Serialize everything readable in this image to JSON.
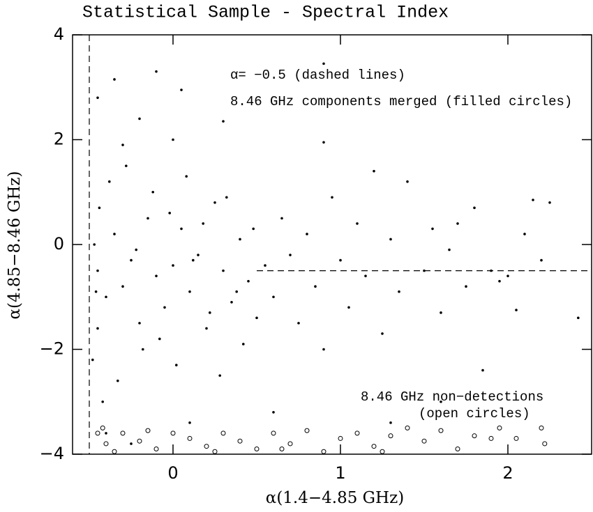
{
  "chart_data": {
    "type": "scatter",
    "title": "Statistical Sample - Spectral Index",
    "xlabel": "α(1.4−4.85 GHz)",
    "ylabel": "α(4.85−8.46 GHz)",
    "xlim": [
      -0.6,
      2.5
    ],
    "ylim": [
      -4,
      4
    ],
    "xticks": [
      0,
      1,
      2
    ],
    "yticks": [
      {
        "value": -4,
        "label": "−4"
      },
      {
        "value": -2,
        "label": "−2"
      },
      0,
      2,
      4
    ],
    "vline": {
      "x": -0.5
    },
    "hline": {
      "y": -0.5,
      "x_start": 0.5
    },
    "annotations": [
      "α= −0.5 (dashed lines)",
      "8.46 GHz components merged (filled circles)",
      "8.46 GHz non−detections",
      "(open circles)"
    ],
    "series": [
      {
        "marker": "filled",
        "color": "#000000",
        "x": [
          -0.45,
          -0.4,
          -0.35,
          -0.3,
          -0.25,
          -0.2,
          -0.15,
          -0.1,
          -0.05,
          0.0,
          0.05,
          0.1,
          0.15,
          0.2,
          0.25,
          0.3,
          0.35,
          0.4,
          0.45,
          0.5,
          -0.48,
          -0.42,
          -0.38,
          -0.33,
          -0.28,
          -0.22,
          -0.18,
          -0.12,
          -0.08,
          -0.02,
          0.02,
          0.08,
          0.12,
          0.18,
          0.22,
          0.28,
          0.32,
          0.38,
          0.42,
          0.48,
          0.55,
          0.6,
          0.65,
          0.7,
          0.75,
          0.8,
          0.85,
          0.9,
          0.95,
          1.0,
          1.05,
          1.1,
          1.15,
          1.2,
          1.25,
          1.3,
          1.35,
          1.4,
          1.5,
          1.55,
          1.6,
          1.65,
          1.7,
          1.75,
          1.8,
          1.85,
          1.9,
          1.95,
          2.0,
          2.1,
          2.15,
          2.25,
          2.2,
          2.42,
          2.05,
          -0.35,
          -0.45,
          -0.1,
          0.05,
          0.9,
          0.3,
          0.9,
          -0.2,
          -0.3,
          0.0,
          -0.4,
          0.1,
          -0.25,
          0.6,
          1.3,
          1.6,
          -0.45,
          -0.47,
          -0.46,
          -0.44
        ],
        "values": [
          -0.5,
          -1.0,
          0.2,
          -0.8,
          -0.3,
          -1.5,
          0.5,
          -0.6,
          -1.2,
          -0.4,
          0.3,
          -0.9,
          -0.2,
          -1.6,
          0.8,
          -0.5,
          -1.1,
          0.1,
          -0.7,
          -1.4,
          -2.2,
          -3.0,
          1.2,
          -2.6,
          1.5,
          -0.1,
          -2.0,
          1.0,
          -1.8,
          0.6,
          -2.3,
          1.3,
          -0.3,
          0.4,
          -1.3,
          -2.5,
          0.9,
          -0.9,
          -1.9,
          0.3,
          -0.4,
          -1.0,
          0.5,
          -0.2,
          -1.5,
          0.2,
          -0.8,
          -2.0,
          0.9,
          -0.3,
          -1.2,
          0.4,
          -0.6,
          1.4,
          -1.7,
          0.1,
          -0.9,
          1.2,
          -0.5,
          0.3,
          -1.3,
          -0.1,
          0.4,
          -0.8,
          0.7,
          -2.4,
          -0.5,
          -0.7,
          -0.6,
          0.2,
          0.85,
          0.8,
          -0.3,
          -1.4,
          -1.25,
          3.15,
          2.8,
          3.3,
          2.95,
          3.45,
          2.35,
          1.95,
          2.4,
          1.9,
          2.0,
          -3.6,
          -3.4,
          -3.8,
          -3.2,
          -3.4,
          -3.0,
          -1.6,
          0.0,
          -0.9,
          0.7
        ]
      },
      {
        "marker": "open",
        "color": "#000000",
        "x": [
          -0.45,
          -0.4,
          -0.35,
          -0.3,
          -0.2,
          -0.1,
          0.0,
          0.1,
          0.2,
          0.3,
          0.4,
          0.5,
          0.6,
          0.7,
          0.8,
          0.9,
          1.0,
          1.1,
          1.2,
          1.3,
          1.4,
          1.5,
          1.6,
          1.7,
          1.8,
          1.9,
          1.95,
          2.05,
          2.2,
          2.22,
          -0.42,
          -0.15,
          0.25,
          0.65,
          1.25
        ],
        "values": [
          -3.6,
          -3.8,
          -3.95,
          -3.6,
          -3.75,
          -3.9,
          -3.6,
          -3.7,
          -3.85,
          -3.6,
          -3.75,
          -3.9,
          -3.6,
          -3.8,
          -3.55,
          -3.95,
          -3.7,
          -3.6,
          -3.85,
          -3.65,
          -3.5,
          -3.75,
          -3.55,
          -3.9,
          -3.65,
          -3.7,
          -3.5,
          -3.7,
          -3.5,
          -3.8,
          -3.5,
          -3.55,
          -3.95,
          -3.9,
          -3.95
        ]
      }
    ]
  }
}
